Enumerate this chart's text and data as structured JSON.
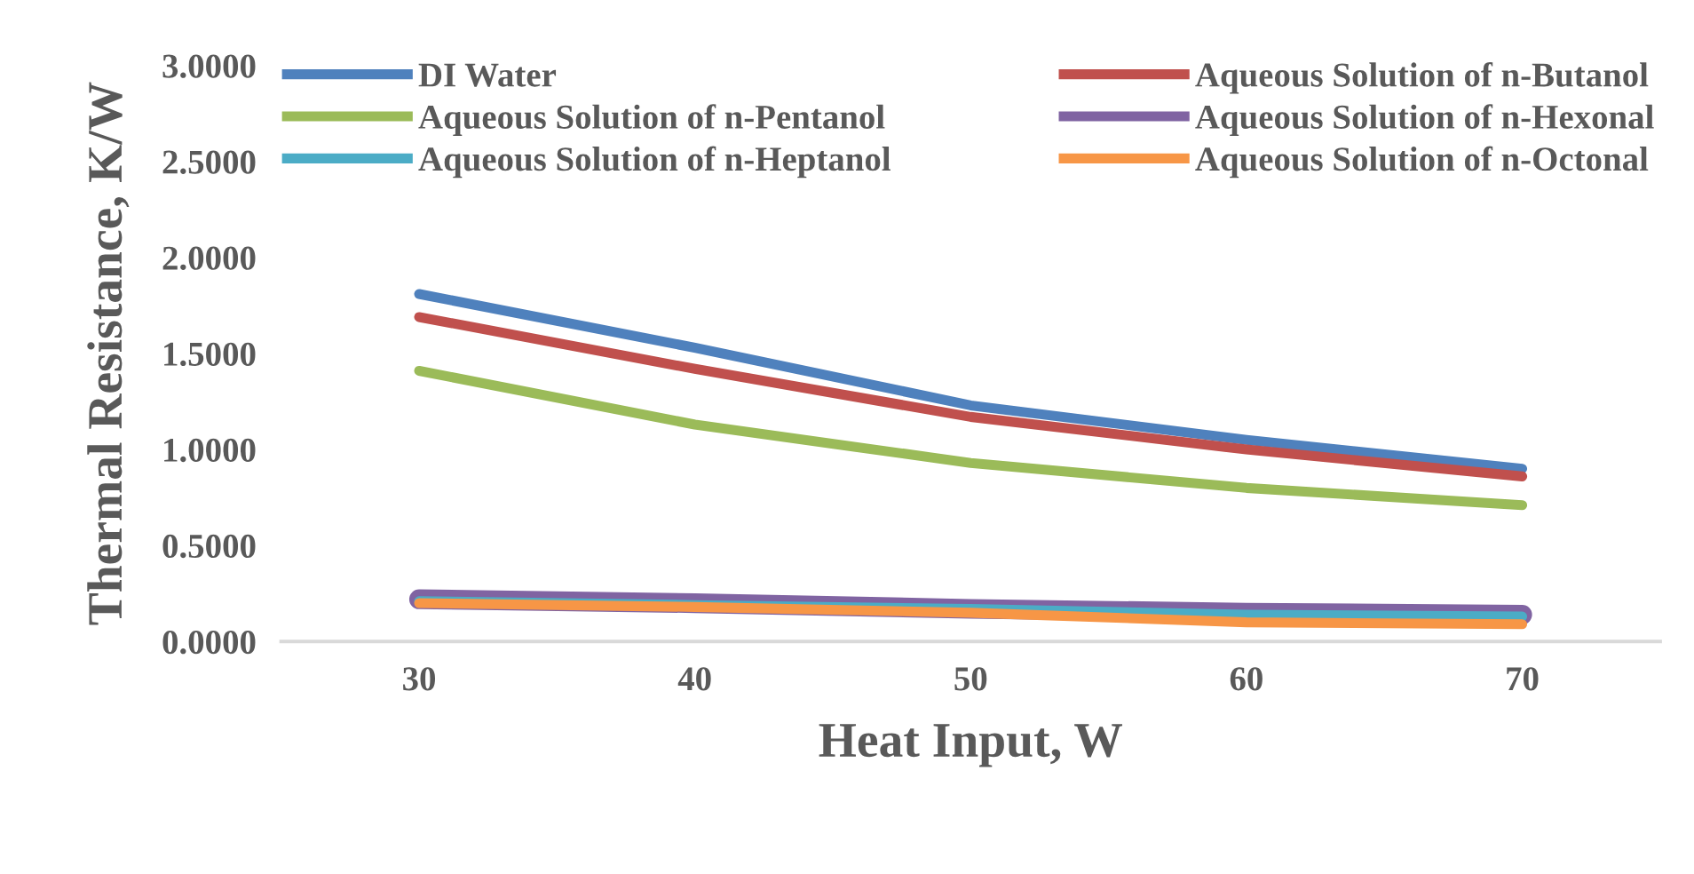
{
  "chart_data": {
    "type": "line",
    "xlabel": "Heat Input, W",
    "ylabel": "Thermal Resistance, K/W",
    "categories": [
      "30",
      "40",
      "50",
      "60",
      "70"
    ],
    "series": [
      {
        "name": "DI Water",
        "color": "#4f81bd",
        "values": [
          1.81,
          1.53,
          1.23,
          1.05,
          0.9
        ]
      },
      {
        "name": "Aqueous Solution of n-Butanol",
        "color": "#c0504d",
        "values": [
          1.69,
          1.42,
          1.17,
          1.0,
          0.86
        ]
      },
      {
        "name": "Aqueous Solution of n-Pentanol",
        "color": "#9bbb59",
        "values": [
          1.41,
          1.13,
          0.93,
          0.8,
          0.71
        ]
      },
      {
        "name": "Aqueous Solution of n-Hexonal",
        "color": "#8064a2",
        "values": [
          0.22,
          0.2,
          0.17,
          0.15,
          0.14
        ]
      },
      {
        "name": "Aqueous Solution of n-Heptanol",
        "color": "#4bacc6",
        "values": [
          0.21,
          0.19,
          0.17,
          0.14,
          0.13
        ]
      },
      {
        "name": "Aqueous Solution of n-Octonal",
        "color": "#f79646",
        "values": [
          0.2,
          0.18,
          0.15,
          0.1,
          0.09
        ]
      }
    ],
    "ylim": [
      0,
      3
    ],
    "yticks": [
      {
        "value": 0,
        "label": "0.0000"
      },
      {
        "value": 0.5,
        "label": "0.5000"
      },
      {
        "value": 1,
        "label": "1.0000"
      },
      {
        "value": 1.5,
        "label": "1.5000"
      },
      {
        "value": 2,
        "label": "2.0000"
      },
      {
        "value": 2.5,
        "label": "2.5000"
      },
      {
        "value": 3,
        "label": "3.0000"
      }
    ],
    "grid": false,
    "legend": "top",
    "marker": "none",
    "line_style": "solid"
  }
}
